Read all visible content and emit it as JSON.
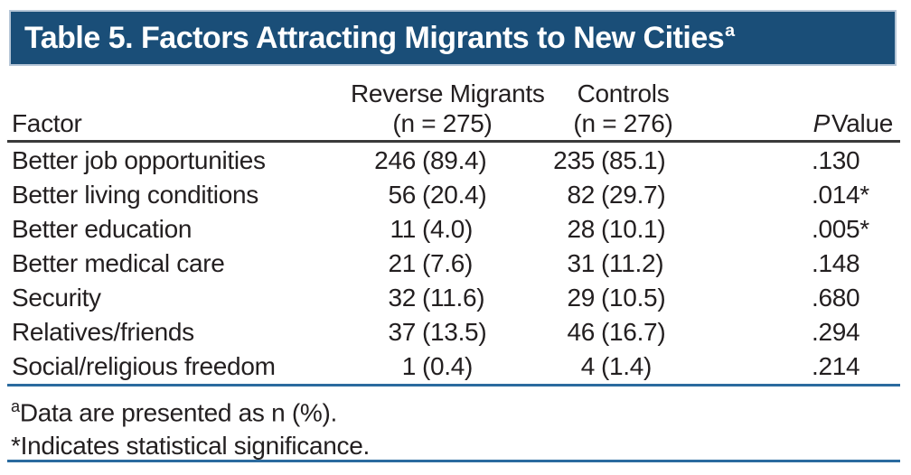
{
  "title": {
    "text": "Table 5. Factors Attracting Migrants to New Cities",
    "superscript": "a"
  },
  "columns": {
    "factor": "Factor",
    "reverse_migrants": {
      "line1": "Reverse Migrants",
      "line2": "(n = 275)"
    },
    "controls": {
      "line1": "Controls",
      "line2": "(n = 276)"
    },
    "p_value": {
      "italic": "P",
      "rest": "Value"
    }
  },
  "rows": [
    {
      "factor": "Better job opportunities",
      "rm_n": "246",
      "rm_pct": "(89.4)",
      "c_n": "235",
      "c_pct": "(85.1)",
      "p": ".130"
    },
    {
      "factor": "Better living conditions",
      "rm_n": "56",
      "rm_pct": "(20.4)",
      "c_n": "82",
      "c_pct": "(29.7)",
      "p": ".014*"
    },
    {
      "factor": "Better education",
      "rm_n": "11",
      "rm_pct": "(4.0)",
      "c_n": "28",
      "c_pct": "(10.1)",
      "p": ".005*"
    },
    {
      "factor": "Better medical care",
      "rm_n": "21",
      "rm_pct": "(7.6)",
      "c_n": "31",
      "c_pct": "(11.2)",
      "p": ".148"
    },
    {
      "factor": "Security",
      "rm_n": "32",
      "rm_pct": "(11.6)",
      "c_n": "29",
      "c_pct": "(10.5)",
      "p": ".680"
    },
    {
      "factor": "Relatives/friends",
      "rm_n": "37",
      "rm_pct": "(13.5)",
      "c_n": "46",
      "c_pct": "(16.7)",
      "p": ".294"
    },
    {
      "factor": "Social/religious freedom",
      "rm_n": "1",
      "rm_pct": "(0.4)",
      "c_n": "4",
      "c_pct": "(1.4)",
      "p": ".214"
    }
  ],
  "footnotes": [
    {
      "marker": "a",
      "text": "Data are presented as n (%)."
    },
    {
      "marker": "*",
      "text": "Indicates statistical significance."
    }
  ],
  "colors": {
    "header_bg": "#1a4e78",
    "bar_border": "#b6c6d7",
    "rule_blue": "#2b6b9f",
    "rule_dark": "#3a3a3a",
    "text": "#231f20",
    "title_text": "#ffffff"
  }
}
